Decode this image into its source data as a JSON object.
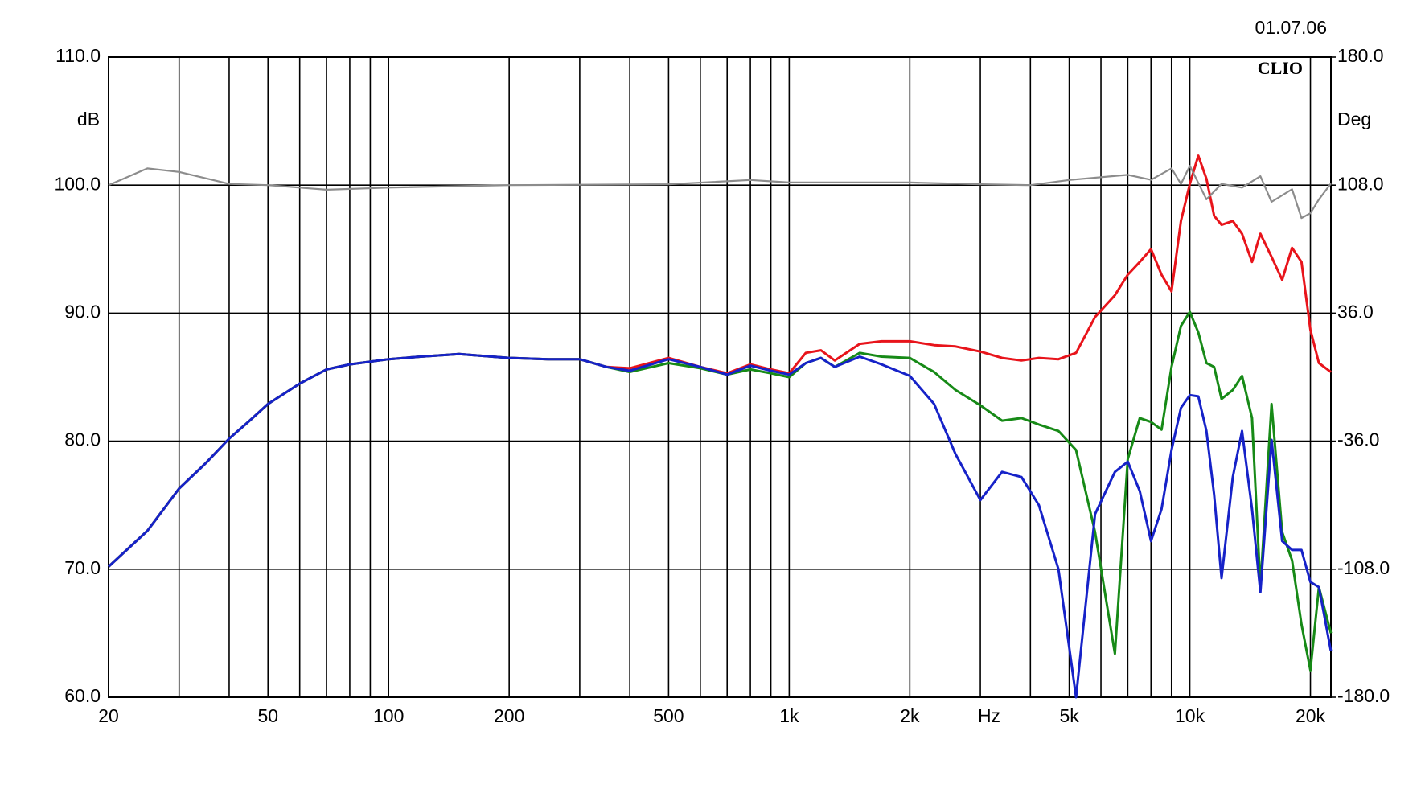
{
  "chart_data": {
    "type": "line",
    "title": "CLIO",
    "subtitle": "01.07.06",
    "y_label": "dB",
    "y2_label": "Deg",
    "x_label": "Hz",
    "xscale": "log",
    "grid": true,
    "xlim": [
      20,
      22500
    ],
    "ylim": [
      60,
      110
    ],
    "y2lim": [
      -180,
      180
    ],
    "xticks": [
      20,
      50,
      100,
      200,
      500,
      {
        "value": 1000,
        "label": "1k"
      },
      {
        "value": 2000,
        "label": "2k"
      },
      {
        "value": 5000,
        "label": "5k"
      },
      {
        "value": 10000,
        "label": "10k"
      },
      {
        "value": 20000,
        "label": "20k"
      }
    ],
    "x_minor_ticks": [
      30,
      40,
      60,
      70,
      80,
      90,
      300,
      400,
      600,
      700,
      800,
      900,
      3000,
      4000,
      6000,
      7000,
      8000,
      9000
    ],
    "yticks": [
      {
        "value": 60,
        "label": "60.0"
      },
      {
        "value": 70,
        "label": "70.0"
      },
      {
        "value": 80,
        "label": "80.0"
      },
      {
        "value": 90,
        "label": "90.0"
      },
      {
        "value": 100,
        "label": "100.0"
      },
      {
        "value": 110,
        "label": "110.0"
      }
    ],
    "y2ticks": [
      {
        "value": -180,
        "label": "-180.0"
      },
      {
        "value": -108,
        "label": "-108.0"
      },
      {
        "value": -36,
        "label": "-36.0"
      },
      {
        "value": 36,
        "label": "36.0"
      },
      {
        "value": 108,
        "label": "108.0"
      },
      {
        "value": 180,
        "label": "180.0"
      }
    ],
    "x": [
      20,
      25,
      30,
      35,
      40,
      45,
      50,
      60,
      70,
      80,
      100,
      120,
      150,
      200,
      250,
      300,
      350,
      400,
      500,
      600,
      700,
      800,
      900,
      1000,
      1100,
      1200,
      1300,
      1500,
      1700,
      2000,
      2300,
      2600,
      3000,
      3400,
      3800,
      4200,
      4700,
      5200,
      5800,
      6500,
      7000,
      7500,
      8000,
      8500,
      9000,
      9500,
      10000,
      10500,
      11000,
      11500,
      12000,
      12800,
      13500,
      14300,
      15000,
      16000,
      17000,
      18000,
      19000,
      20000,
      21000,
      22500
    ],
    "series": [
      {
        "color": "#e8141b",
        "values": [
          70.2,
          73.0,
          76.3,
          78.3,
          80.2,
          81.6,
          82.9,
          84.5,
          85.6,
          86.0,
          86.4,
          86.6,
          86.8,
          86.5,
          86.4,
          86.4,
          85.8,
          85.7,
          86.5,
          85.8,
          85.3,
          86.0,
          85.6,
          85.3,
          86.9,
          87.1,
          86.3,
          87.6,
          87.8,
          87.8,
          87.5,
          87.4,
          87.0,
          86.5,
          86.3,
          86.5,
          86.4,
          86.9,
          89.7,
          91.4,
          93.0,
          94.0,
          95.0,
          93.0,
          91.7,
          97.2,
          100.1,
          102.3,
          100.5,
          97.6,
          96.9,
          97.2,
          96.2,
          94.0,
          96.2,
          94.4,
          92.6,
          95.1,
          94.0,
          88.7,
          86.1,
          85.4
        ]
      },
      {
        "color": "#178a17",
        "values": [
          70.2,
          73.0,
          76.3,
          78.3,
          80.2,
          81.6,
          82.9,
          84.5,
          85.6,
          86.0,
          86.4,
          86.6,
          86.8,
          86.5,
          86.4,
          86.4,
          85.8,
          85.4,
          86.1,
          85.7,
          85.2,
          85.6,
          85.3,
          85.0,
          86.1,
          86.5,
          85.8,
          86.9,
          86.6,
          86.5,
          85.4,
          84.0,
          82.8,
          81.6,
          81.8,
          81.3,
          80.8,
          79.3,
          72.9,
          63.4,
          78.6,
          81.8,
          81.5,
          80.9,
          85.8,
          89.0,
          90.1,
          88.5,
          86.1,
          85.8,
          83.3,
          84.0,
          85.1,
          81.8,
          68.6,
          82.9,
          72.9,
          70.7,
          65.7,
          62.1,
          68.6,
          65.0
        ]
      },
      {
        "color": "#1622c8",
        "values": [
          70.2,
          73.0,
          76.3,
          78.3,
          80.2,
          81.6,
          82.9,
          84.5,
          85.6,
          86.0,
          86.4,
          86.6,
          86.8,
          86.5,
          86.4,
          86.4,
          85.8,
          85.5,
          86.4,
          85.8,
          85.2,
          85.9,
          85.5,
          85.2,
          86.1,
          86.5,
          85.8,
          86.6,
          86.0,
          85.1,
          82.9,
          79.0,
          75.4,
          77.6,
          77.2,
          75.0,
          70.0,
          60.0,
          74.3,
          77.6,
          78.4,
          76.1,
          72.2,
          74.7,
          79.3,
          82.6,
          83.6,
          83.5,
          80.8,
          75.8,
          69.3,
          77.2,
          80.8,
          74.7,
          68.2,
          80.1,
          72.2,
          71.5,
          71.5,
          69.0,
          68.6,
          63.6
        ]
      },
      {
        "color": "#8c8c8c",
        "axis": "y2",
        "x": [
          20,
          25,
          30,
          40,
          50,
          70,
          100,
          200,
          500,
          800,
          1000,
          2000,
          3000,
          4000,
          5000,
          7000,
          8000,
          9000,
          9500,
          10000,
          11000,
          12000,
          13500,
          15000,
          16000,
          18000,
          19000,
          20000,
          21000,
          22500
        ],
        "values": [
          108,
          117.4,
          115.4,
          108.7,
          108,
          105.4,
          106.6,
          108,
          108.5,
          110.9,
          109.5,
          109.5,
          108.5,
          108,
          110.9,
          113.8,
          111,
          117.4,
          108.7,
          118.8,
          100,
          108.7,
          106.6,
          113,
          98.6,
          105.7,
          89.5,
          92.2,
          100,
          108.9
        ]
      }
    ]
  }
}
